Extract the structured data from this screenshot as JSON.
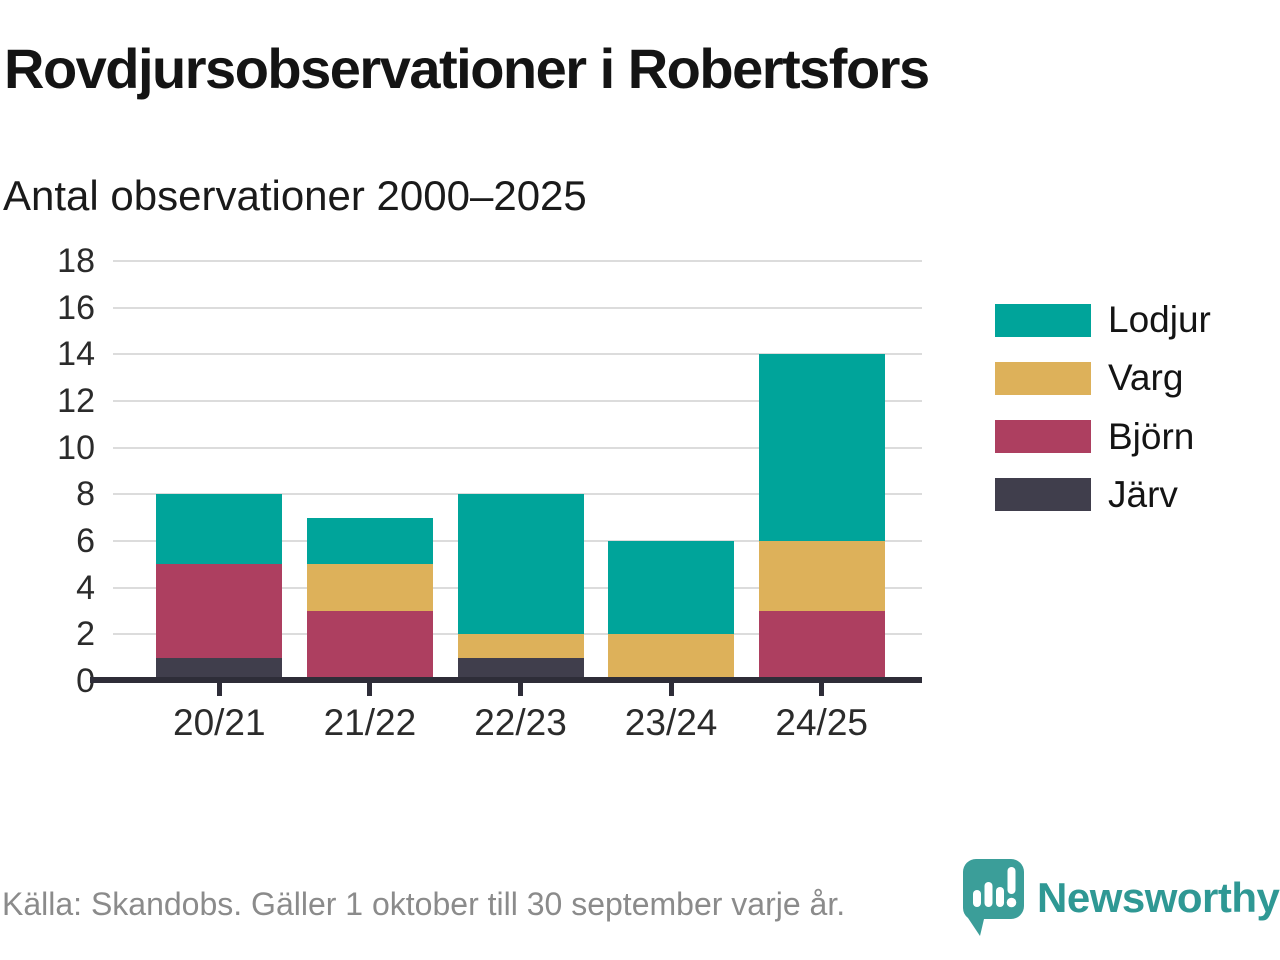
{
  "header": {
    "title": "Rovdjursobservationer i Robertsfors",
    "subtitle": "Antal observationer 2000–2025"
  },
  "chart_data": {
    "type": "bar",
    "stacked": true,
    "title": "Rovdjursobservationer i Robertsfors",
    "subtitle": "Antal observationer 2000–2025",
    "categories": [
      "20/21",
      "21/22",
      "22/23",
      "23/24",
      "24/25"
    ],
    "series": [
      {
        "name": "Lodjur",
        "color": "#00a49a",
        "values": [
          3,
          2,
          6,
          4,
          8
        ]
      },
      {
        "name": "Varg",
        "color": "#ddb15a",
        "values": [
          0,
          2,
          1,
          2,
          3
        ]
      },
      {
        "name": "Björn",
        "color": "#ad3f60",
        "values": [
          4,
          3,
          0,
          0,
          3
        ]
      },
      {
        "name": "Järv",
        "color": "#403e4c",
        "values": [
          1,
          0,
          1,
          0,
          0
        ]
      }
    ],
    "stack_order_bottom_to_top": [
      "Järv",
      "Björn",
      "Varg",
      "Lodjur"
    ],
    "totals": [
      8,
      7,
      8,
      6,
      14
    ],
    "xlabel": "",
    "ylabel": "",
    "ylim": [
      0,
      18
    ],
    "ytick_step": 2,
    "grid": true,
    "legend_position": "right"
  },
  "footer": {
    "source": "Källa: Skandobs. Gäller 1 oktober till 30 september varje år.",
    "brand": "Newsworthy"
  },
  "colors": {
    "gridline": "#dcdcdc",
    "axis": "#2e2d38",
    "brand_teal": "#2f9894",
    "logo_fill": "#3b9e99"
  }
}
